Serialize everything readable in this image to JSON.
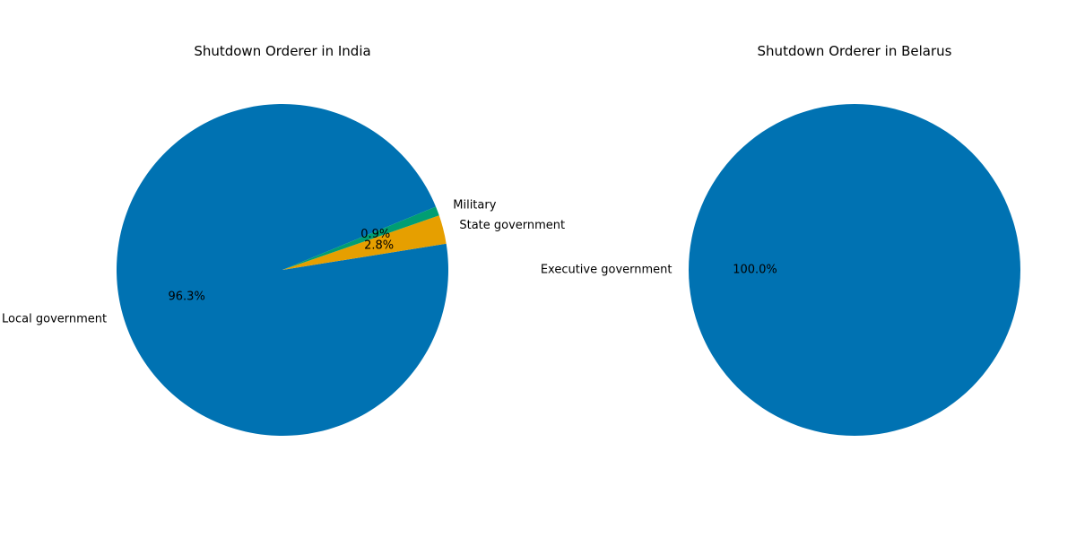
{
  "chart_data": [
    {
      "type": "pie",
      "title": "Shutdown Orderer in India",
      "categories": [
        "Local government",
        "State government",
        "Military"
      ],
      "values": [
        96.3,
        2.8,
        0.9
      ],
      "value_labels": [
        "96.3%",
        "2.8%",
        "0.9%"
      ],
      "colors": [
        "#0072b2",
        "#e69f00",
        "#009e73"
      ],
      "start_angle_deg": 22.4,
      "counterclockwise": true
    },
    {
      "type": "pie",
      "title": "Shutdown Orderer in Belarus",
      "categories": [
        "Executive government"
      ],
      "values": [
        100.0
      ],
      "value_labels": [
        "100.0%"
      ],
      "colors": [
        "#0072b2"
      ],
      "start_angle_deg": 0,
      "counterclockwise": true
    }
  ]
}
